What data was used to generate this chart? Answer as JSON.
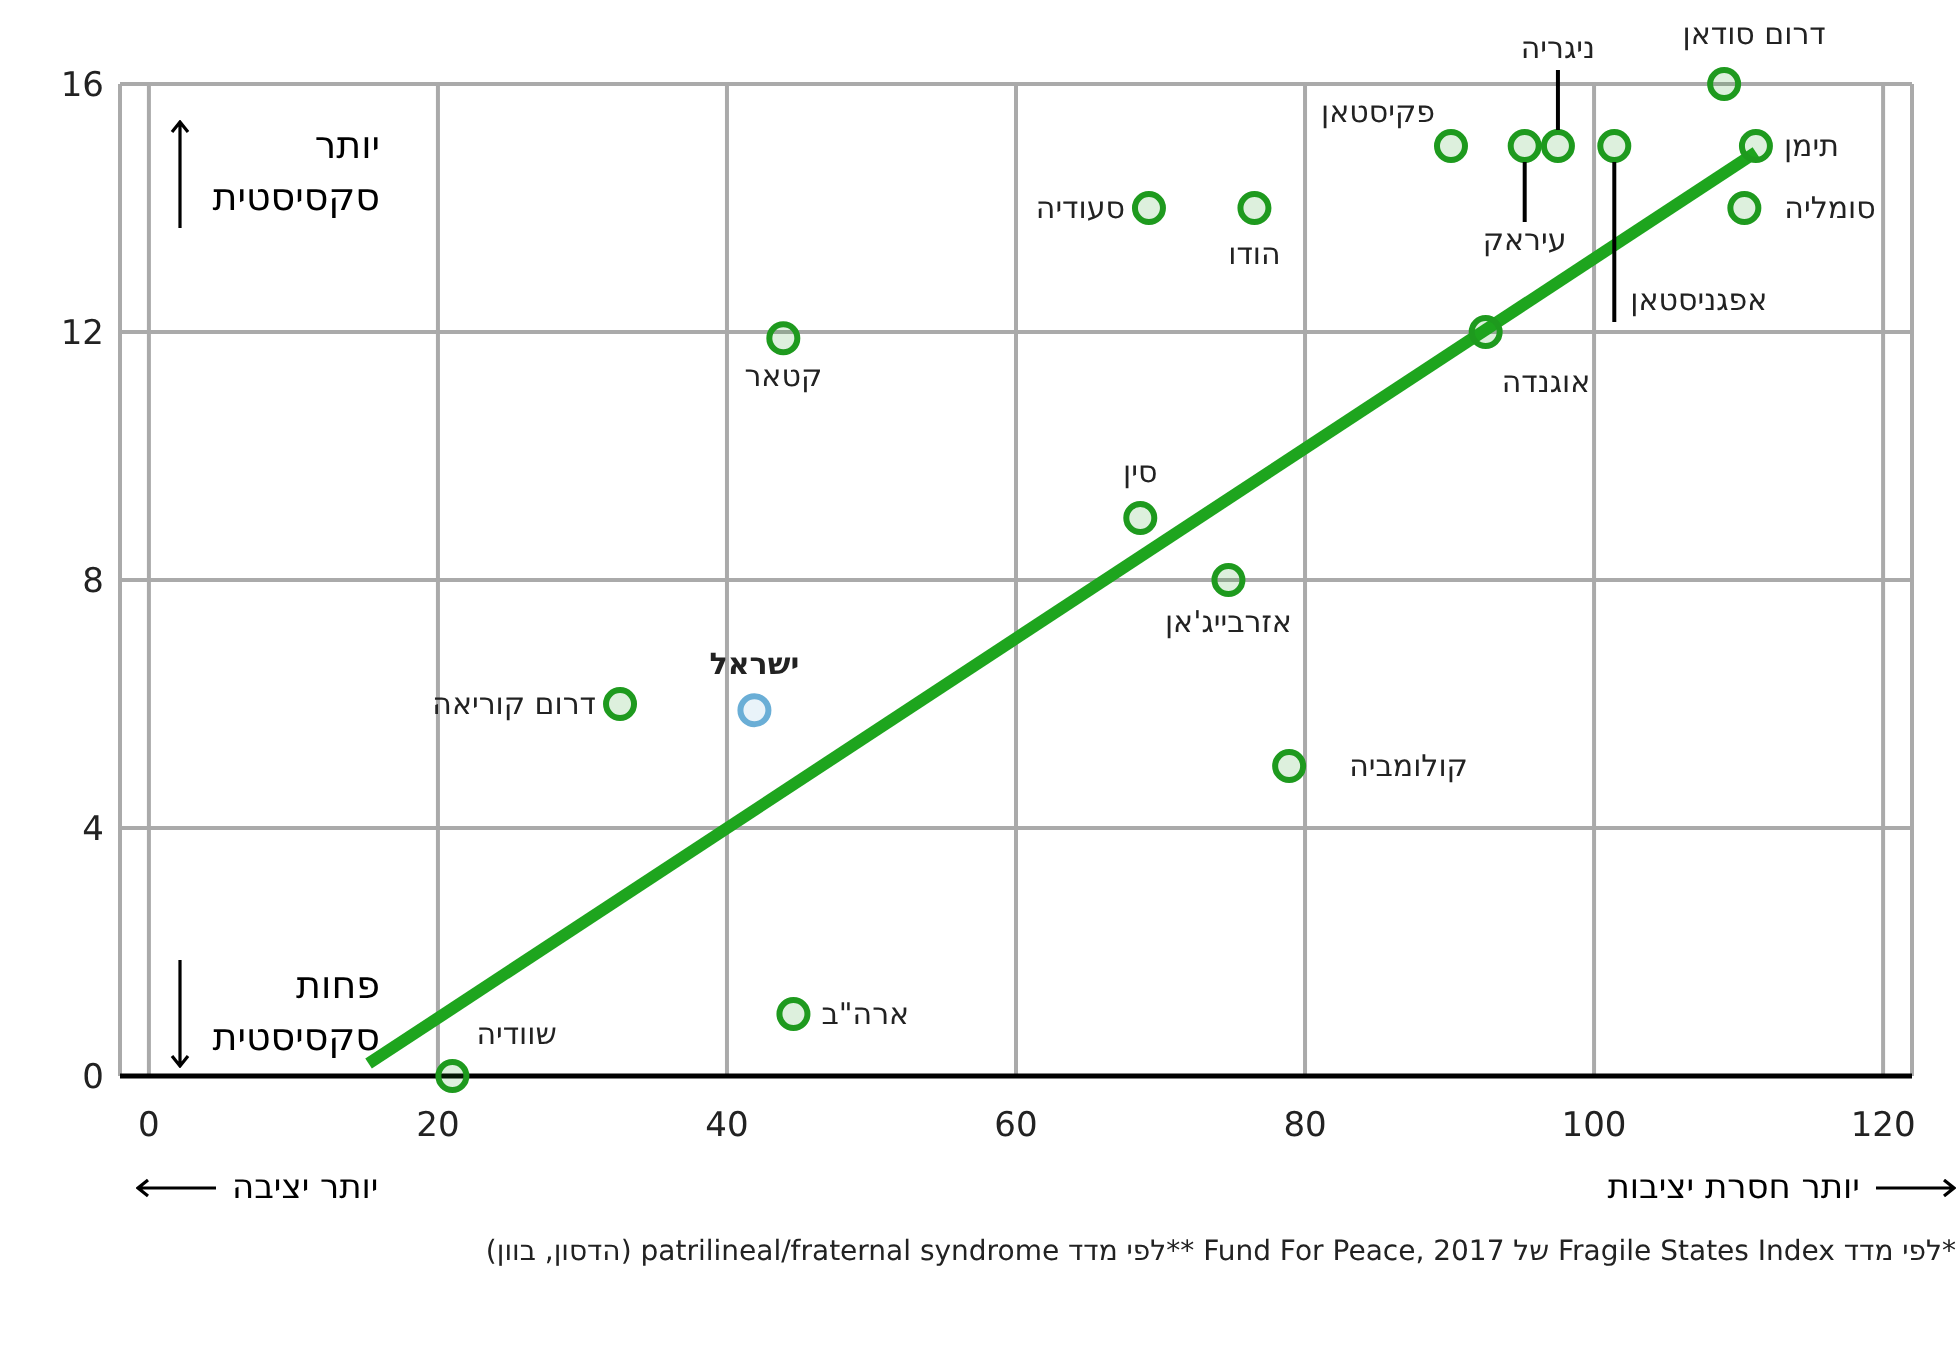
{
  "chart_data": {
    "type": "scatter",
    "xlim": [
      -2,
      122
    ],
    "xticks": [
      0,
      20,
      40,
      60,
      80,
      100,
      120
    ],
    "ylim": [
      0,
      16
    ],
    "yticks": [
      0,
      4,
      8,
      12,
      16
    ],
    "grid": true,
    "legend": false,
    "series": [
      {
        "marker": "circle",
        "color": "#1e9a1e",
        "x": [
          21,
          44.6,
          32.6,
          41.9,
          43.9,
          68.6,
          74.7,
          78.9,
          69.2,
          76.5,
          92.5,
          90.1,
          95.2,
          97.5,
          101.4,
          109,
          111.2,
          110.4
        ],
        "values": [
          0,
          1,
          6,
          5.9,
          11.9,
          9,
          8,
          5,
          14,
          14,
          12,
          15,
          15,
          15,
          15,
          16,
          15,
          14
        ],
        "colors": [
          "#1e9a1e",
          "#1e9a1e",
          "#1e9a1e",
          "#6aaed6",
          "#1e9a1e",
          "#1e9a1e",
          "#1e9a1e",
          "#1e9a1e",
          "#1e9a1e",
          "#1e9a1e",
          "#1e9a1e",
          "#1e9a1e",
          "#1e9a1e",
          "#1e9a1e",
          "#1e9a1e",
          "#1e9a1e",
          "#1e9a1e",
          "#1e9a1e"
        ]
      },
      {
        "type": "line",
        "color": "#1ea51e",
        "x": [
          15.2,
          111.2
        ],
        "values": [
          0.2,
          14.9
        ]
      }
    ],
    "annotations": [
      {
        "text": "שוודיה",
        "x": 21,
        "y": 0
      },
      {
        "text": "ארה\"ב",
        "x": 44.6,
        "y": 1
      },
      {
        "text": "דרום קוריאה",
        "x": 32.6,
        "y": 6
      },
      {
        "text": "ישראל",
        "x": 41.9,
        "y": 5.9
      },
      {
        "text": "קטאר",
        "x": 43.9,
        "y": 11.9
      },
      {
        "text": "סין",
        "x": 68.6,
        "y": 9
      },
      {
        "text": "אזרבייג'אן",
        "x": 74.7,
        "y": 8
      },
      {
        "text": "קולומביה",
        "x": 78.9,
        "y": 5
      },
      {
        "text": "סעודיה",
        "x": 69.2,
        "y": 14
      },
      {
        "text": "הודו",
        "x": 76.5,
        "y": 14
      },
      {
        "text": "אוגנדה",
        "x": 92.5,
        "y": 12
      },
      {
        "text": "פקיסטאן",
        "x": 90.1,
        "y": 15
      },
      {
        "text": "עיראק",
        "x": 95.2,
        "y": 15
      },
      {
        "text": "ניגריה",
        "x": 97.5,
        "y": 15
      },
      {
        "text": "אפגניסטאן",
        "x": 101.4,
        "y": 15
      },
      {
        "text": "דרום סודאן",
        "x": 109,
        "y": 16
      },
      {
        "text": "תימן",
        "x": 111.2,
        "y": 15
      },
      {
        "text": "סומליה",
        "x": 110.4,
        "y": 14
      },
      "יותר סקסיסטית",
      "פחות סקסיסטית",
      "יותר יציבה",
      "יותר חסרת יציבות",
      "*לפי מדד Fragile States Index של Fund For Peace, 2017 **לפי מדד patrilineal/fraternal syndrome (הדסון, בוון)"
    ]
  }
}
